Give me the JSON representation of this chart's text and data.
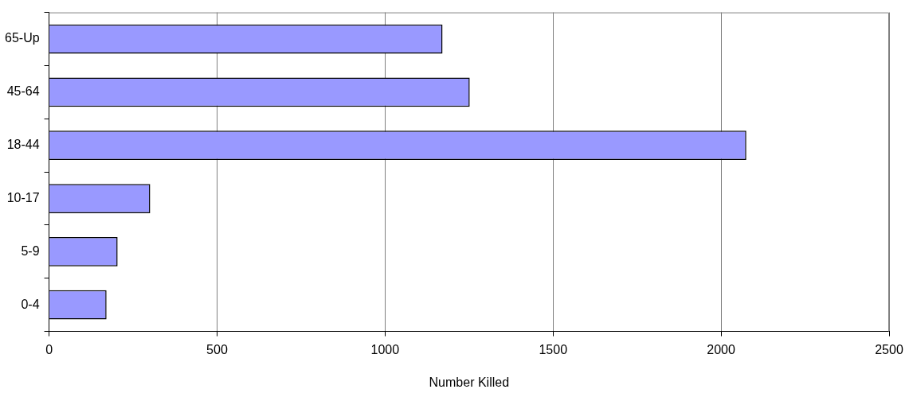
{
  "chart_data": {
    "type": "bar",
    "orientation": "horizontal",
    "xlabel": "Number Killed",
    "categories": [
      "65-Up",
      "45-64",
      "18-44",
      "10-17",
      "5-9",
      "0-4"
    ],
    "values": [
      1171,
      1252,
      2075,
      301,
      204,
      171
    ],
    "color": "#9999ff",
    "xlim": [
      0,
      2500
    ],
    "xticks": [
      0,
      500,
      1000,
      1500,
      2000,
      2500
    ],
    "grid": "x",
    "legend": false
  }
}
